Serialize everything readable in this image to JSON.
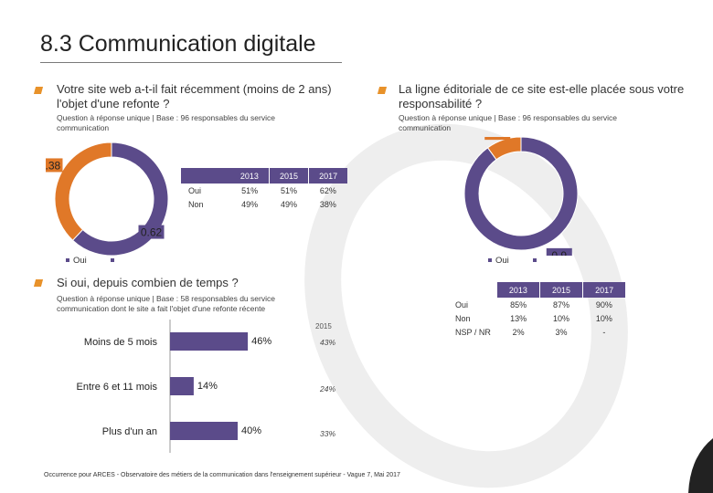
{
  "title": "8.3 Communication digitale",
  "q1": {
    "question": "Votre site web a-t-il fait récemment (moins de 2 ans) l'objet d'une refonte ?",
    "subtitle": "Question à réponse unique | Base : 96 responsables du service communication",
    "legend": "Oui",
    "table": {
      "years": [
        "2013",
        "2015",
        "2017"
      ],
      "rows": [
        {
          "label": "Oui",
          "values": [
            "51%",
            "51%",
            "62%"
          ]
        },
        {
          "label": "Non",
          "values": [
            "49%",
            "49%",
            "38%"
          ]
        }
      ]
    }
  },
  "q2": {
    "question": "La ligne éditoriale de ce site est-elle placée sous votre responsabilité ?",
    "subtitle": "Question à réponse unique | Base : 96 responsables du service communication",
    "legend": "Oui",
    "table": {
      "years": [
        "2013",
        "2015",
        "2017"
      ],
      "rows": [
        {
          "label": "Oui",
          "values": [
            "85%",
            "87%",
            "90%"
          ]
        },
        {
          "label": "Non",
          "values": [
            "13%",
            "10%",
            "10%"
          ]
        },
        {
          "label": "NSP / NR",
          "values": [
            "2%",
            "3%",
            "-"
          ]
        }
      ]
    }
  },
  "q3": {
    "question": "Si oui, depuis combien de temps ?",
    "subtitle": "Question à réponse unique | Base : 58 responsables du service communication dont le site a fait l'objet d'une refonte récente",
    "compare_year": "2015",
    "compare_values": [
      "43%",
      "24%",
      "33%"
    ]
  },
  "chart_data": [
    {
      "type": "pie",
      "donut": true,
      "labels": [
        "Oui",
        "Non"
      ],
      "values": [
        0.62,
        0.38
      ],
      "data_labels": [
        "0.62",
        "0.38"
      ],
      "colors": [
        "#5b4b8a",
        "#e07828"
      ]
    },
    {
      "type": "pie",
      "donut": true,
      "labels": [
        "Oui",
        "Non"
      ],
      "values": [
        0.9,
        0.1
      ],
      "data_labels": [
        "0.9",
        "0.1"
      ],
      "colors": [
        "#5b4b8a",
        "#e07828"
      ]
    },
    {
      "type": "bar",
      "orientation": "horizontal",
      "categories": [
        "Moins de 5 mois",
        "Entre 6 et 11 mois",
        "Plus d'un an"
      ],
      "values": [
        46,
        14,
        40
      ],
      "data_labels": [
        "46%",
        "14%",
        "40%"
      ],
      "xlim": [
        0,
        100
      ],
      "color": "#5b4b8a"
    }
  ],
  "footer": "Occurrence pour ARCES - Observatoire des métiers de la communication dans l'enseignement supérieur - Vague 7, Mai 2017"
}
